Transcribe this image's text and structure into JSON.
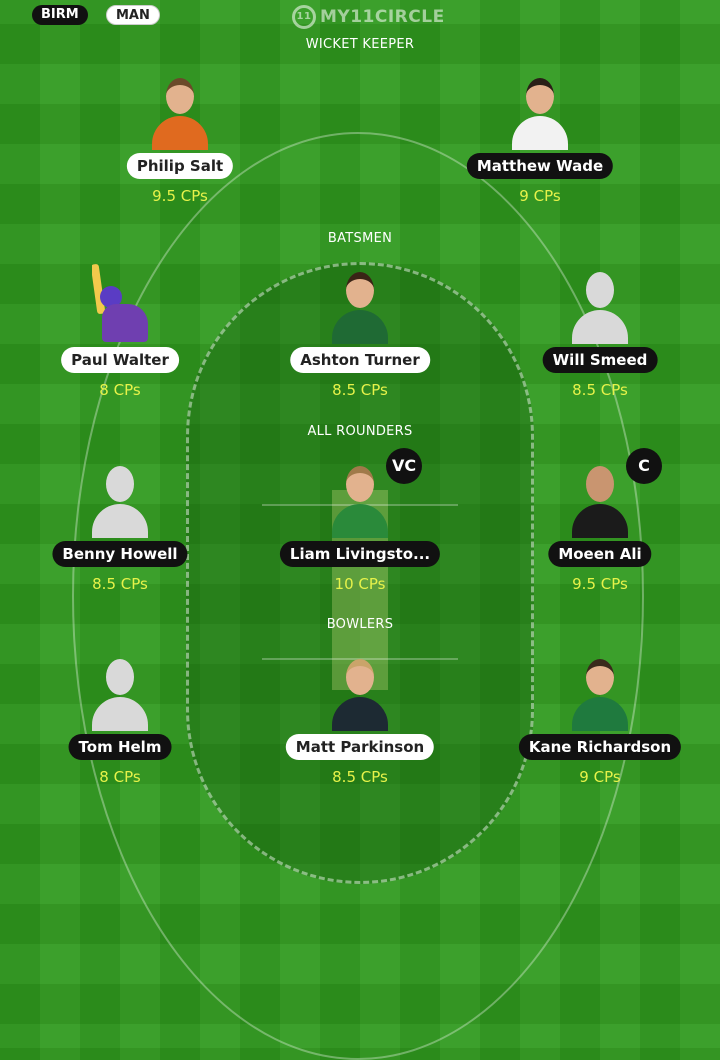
{
  "teams": {
    "home": "BIRM",
    "away": "MAN"
  },
  "logo": {
    "mark": "11",
    "text": "MY11CIRCLE"
  },
  "sections": {
    "wicket_keeper": "WICKET KEEPER",
    "batsmen": "BATSMEN",
    "all_rounders": "ALL ROUNDERS",
    "bowlers": "BOWLERS"
  },
  "players": {
    "wk": [
      {
        "name": "Philip Salt",
        "credits": "9.5 CPs",
        "team": "BIRM"
      },
      {
        "name": "Matthew Wade",
        "credits": "9 CPs",
        "team": "MAN"
      }
    ],
    "bat": [
      {
        "name": "Paul Walter",
        "credits": "8 CPs",
        "team": "MAN"
      },
      {
        "name": "Ashton Turner",
        "credits": "8.5 CPs",
        "team": "MAN"
      },
      {
        "name": "Will Smeed",
        "credits": "8.5 CPs",
        "team": "BIRM"
      }
    ],
    "ar": [
      {
        "name": "Benny Howell",
        "credits": "8.5 CPs",
        "team": "BIRM"
      },
      {
        "name": "Liam Livingsto...",
        "credits": "10 CPs",
        "team": "BIRM",
        "role": "VC"
      },
      {
        "name": "Moeen Ali",
        "credits": "9.5 CPs",
        "team": "BIRM",
        "role": "C"
      }
    ],
    "bowl": [
      {
        "name": "Tom Helm",
        "credits": "8 CPs",
        "team": "BIRM"
      },
      {
        "name": "Matt Parkinson",
        "credits": "8.5 CPs",
        "team": "MAN"
      },
      {
        "name": "Kane Richardson",
        "credits": "9 CPs",
        "team": "BIRM"
      }
    ]
  },
  "colors": {
    "field": "#2f9a1e",
    "credits": "#e6f24a",
    "home_pill": "#111111",
    "away_pill": "#ffffff"
  }
}
